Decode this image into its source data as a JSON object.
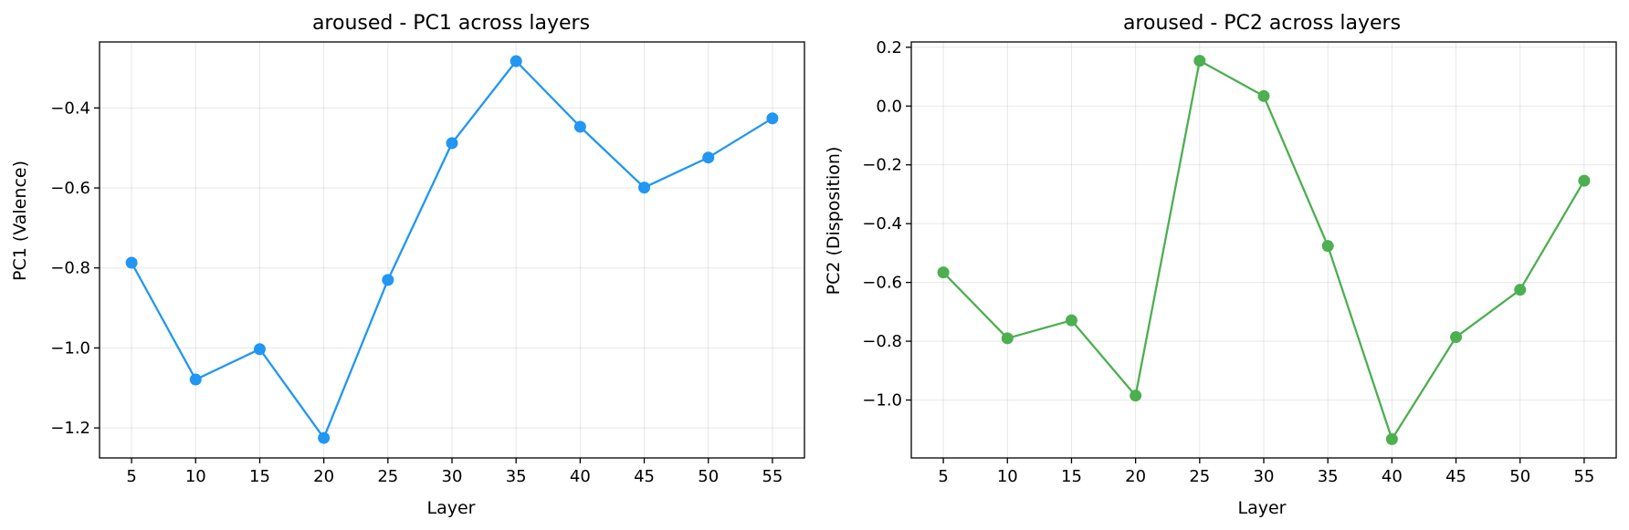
{
  "chart_data": [
    {
      "type": "line",
      "title": "aroused - PC1 across layers",
      "xlabel": "Layer",
      "ylabel": "PC1 (Valence)",
      "x": [
        5,
        10,
        15,
        20,
        25,
        30,
        35,
        40,
        45,
        50,
        55
      ],
      "xlim": [
        2.5,
        57.5
      ],
      "ylim": [
        -1.275,
        -0.235
      ],
      "yticks": [
        -1.2,
        -1.0,
        -0.8,
        -0.6,
        -0.4
      ],
      "ytick_labels": [
        "−1.2",
        "−1.0",
        "−0.8",
        "−0.6",
        "−0.4"
      ],
      "xticks": [
        5,
        10,
        15,
        20,
        25,
        30,
        35,
        40,
        45,
        50,
        55
      ],
      "xtick_labels": [
        "5",
        "10",
        "15",
        "20",
        "25",
        "30",
        "35",
        "40",
        "45",
        "50",
        "55"
      ],
      "grid": true,
      "series": [
        {
          "color": "#2196f3",
          "marker": "circle",
          "values": [
            -0.787,
            -1.079,
            -1.003,
            -1.225,
            -0.83,
            -0.488,
            -0.283,
            -0.447,
            -0.599,
            -0.524,
            -0.426
          ]
        }
      ]
    },
    {
      "type": "line",
      "title": "aroused - PC2 across layers",
      "xlabel": "Layer",
      "ylabel": "PC2 (Disposition)",
      "x": [
        5,
        10,
        15,
        20,
        25,
        30,
        35,
        40,
        45,
        50,
        55
      ],
      "xlim": [
        2.5,
        57.5
      ],
      "ylim": [
        -1.197,
        0.218
      ],
      "yticks": [
        -1.0,
        -0.8,
        -0.6,
        -0.4,
        -0.2,
        0.0,
        0.2
      ],
      "ytick_labels": [
        "−1.0",
        "−0.8",
        "−0.6",
        "−0.4",
        "−0.2",
        "0.0",
        "0.2"
      ],
      "xticks": [
        5,
        10,
        15,
        20,
        25,
        30,
        35,
        40,
        45,
        50,
        55
      ],
      "xtick_labels": [
        "5",
        "10",
        "15",
        "20",
        "25",
        "30",
        "35",
        "40",
        "45",
        "50",
        "55"
      ],
      "grid": true,
      "series": [
        {
          "color": "#4caf50",
          "marker": "circle",
          "values": [
            -0.566,
            -0.79,
            -0.729,
            -0.985,
            0.154,
            0.034,
            -0.476,
            -1.133,
            -0.786,
            -0.625,
            -0.254
          ]
        }
      ]
    }
  ]
}
